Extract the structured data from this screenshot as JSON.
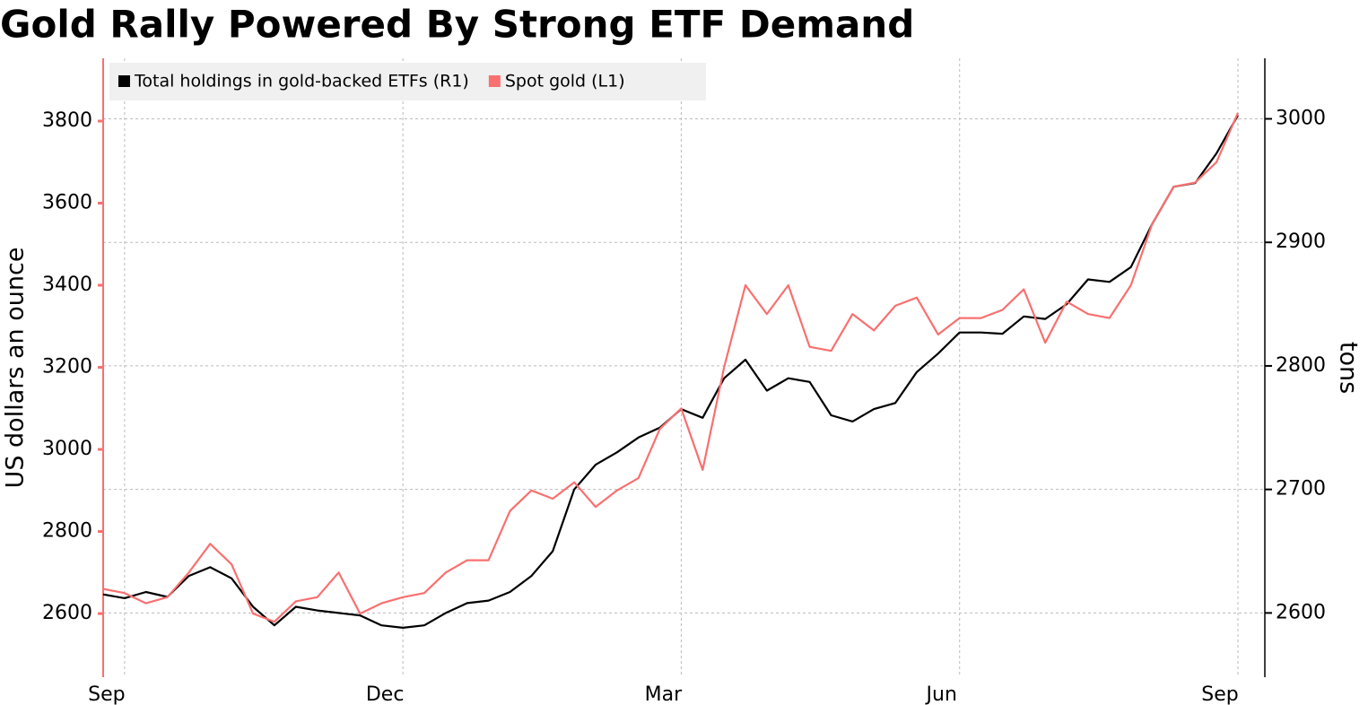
{
  "chart_data": {
    "type": "line",
    "title": "Gold Rally Powered By Strong ETF Demand",
    "y_label": "US dollars an ounce",
    "y2_label": "tons",
    "categories": [
      null,
      "Sep",
      null,
      null,
      null,
      null,
      null,
      null,
      null,
      null,
      null,
      null,
      null,
      null,
      "Dec",
      null,
      null,
      null,
      null,
      null,
      null,
      null,
      null,
      null,
      null,
      null,
      null,
      "Mar",
      null,
      null,
      null,
      null,
      null,
      null,
      null,
      null,
      null,
      null,
      null,
      null,
      "Jun",
      null,
      null,
      null,
      null,
      null,
      null,
      null,
      null,
      null,
      null,
      null,
      null,
      "Sep"
    ],
    "series": [
      {
        "name": "Total holdings in gold-backed ETFs (R1)",
        "color": "#000000",
        "axis": "y2",
        "values": [
          2615,
          2612,
          2617,
          2613,
          2630,
          2637,
          2628,
          2605,
          2590,
          2605,
          2602,
          2600,
          2598,
          2590,
          2588,
          2590,
          2600,
          2608,
          2610,
          2617,
          2630,
          2650,
          2700,
          2720,
          2730,
          2742,
          2750,
          2765,
          2758,
          2790,
          2805,
          2780,
          2790,
          2787,
          2760,
          2755,
          2765,
          2770,
          2795,
          2810,
          2827,
          2827,
          2826,
          2840,
          2838,
          2850,
          2870,
          2868,
          2880,
          2915,
          2945,
          2948,
          2972,
          3003
        ]
      },
      {
        "name": "Spot gold (L1)",
        "color": "#f87070",
        "values": [
          2660,
          2650,
          2625,
          2640,
          2700,
          2770,
          2720,
          2600,
          2580,
          2630,
          2640,
          2700,
          2600,
          2625,
          2640,
          2650,
          2700,
          2730,
          2730,
          2850,
          2900,
          2880,
          2920,
          2860,
          2900,
          2930,
          3050,
          3100,
          2950,
          3200,
          3400,
          3330,
          3400,
          3250,
          3240,
          3330,
          3290,
          3350,
          3370,
          3280,
          3320,
          3320,
          3340,
          3390,
          3260,
          3360,
          3330,
          3320,
          3400,
          3550,
          3640,
          3650,
          3700,
          3820
        ]
      }
    ],
    "ylim": [
      2445,
      3953
    ],
    "yticks": [
      2600,
      2800,
      3000,
      3200,
      3400,
      3600,
      3800
    ],
    "y2lim": [
      2548,
      3049
    ],
    "y2ticks": [
      2600,
      2700,
      2800,
      2900,
      3000
    ],
    "grid": true,
    "legend": "upper left"
  }
}
